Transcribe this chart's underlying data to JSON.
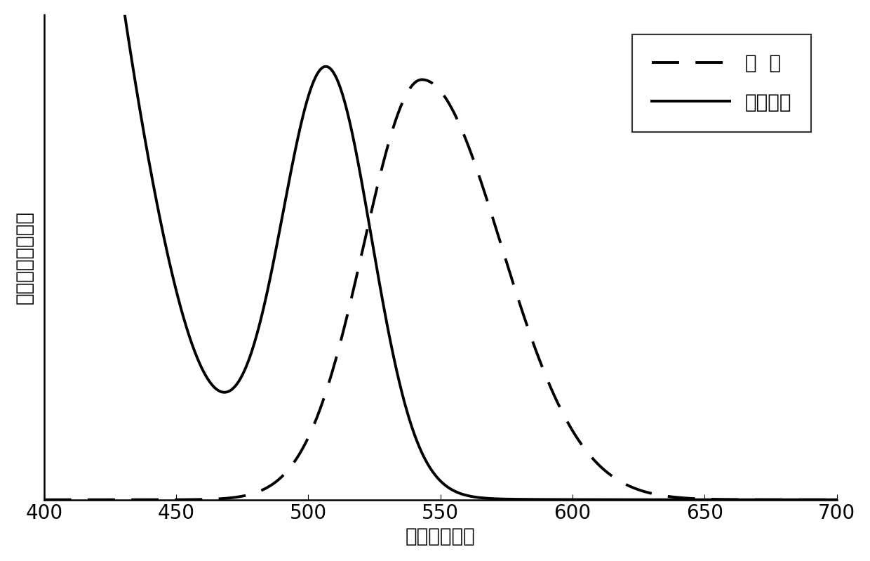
{
  "title": "",
  "xlabel": "波长（纳米）",
  "ylabel": "荧光度与吸收强度",
  "xlim": [
    400,
    700
  ],
  "ylim": [
    0,
    1.12
  ],
  "xticks": [
    400,
    450,
    500,
    550,
    600,
    650,
    700
  ],
  "legend_labels": [
    "荧  光",
    "紫外吸收"
  ],
  "line_color": "#000000",
  "background_color": "#ffffff",
  "font_size": 20
}
